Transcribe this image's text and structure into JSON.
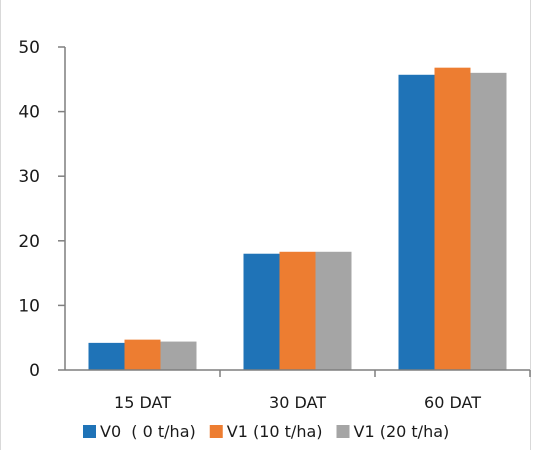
{
  "chart_data": {
    "type": "bar",
    "title": "",
    "xlabel": "",
    "ylabel": "",
    "ylim": [
      0,
      50
    ],
    "yticks": [
      0,
      10,
      20,
      30,
      40,
      50
    ],
    "grid": false,
    "legend_position": "bottom",
    "categories": [
      "15 DAT",
      "30 DAT",
      "60 DAT"
    ],
    "series": [
      {
        "name": "V0  ( 0 t/ha)",
        "color": "#1f73b7",
        "values": [
          4.2,
          18.0,
          45.7
        ]
      },
      {
        "name": "V1 (10 t/ha)",
        "color": "#ed7d31",
        "values": [
          4.7,
          18.3,
          46.8
        ]
      },
      {
        "name": "V1 (20 t/ha)",
        "color": "#a5a5a5",
        "values": [
          4.4,
          18.3,
          46.0
        ]
      }
    ]
  }
}
